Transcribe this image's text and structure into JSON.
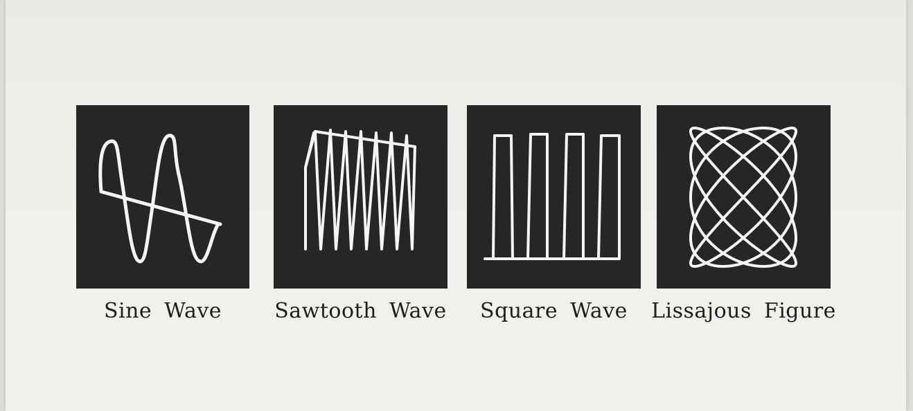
{
  "figures": [
    {
      "label": "Sine Wave",
      "icon": "sine-wave-trace"
    },
    {
      "label": "Sawtooth Wave",
      "icon": "sawtooth-wave-trace"
    },
    {
      "label": "Square Wave",
      "icon": "square-wave-trace"
    },
    {
      "label": "Lissajous Figure",
      "icon": "lissajous-figure-trace"
    }
  ],
  "colors": {
    "panel": "#262626",
    "trace": "#f4f4f2",
    "paper": "#f0efeb",
    "text": "#1e1e1e"
  }
}
